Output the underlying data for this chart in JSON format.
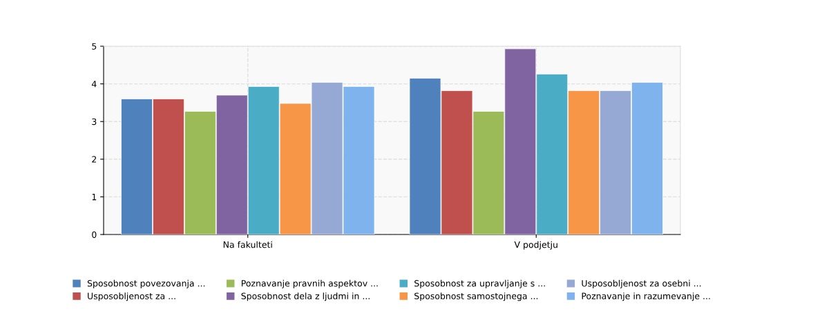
{
  "chart_data": {
    "type": "bar",
    "categories": [
      "Na fakulteti",
      "V podjetju"
    ],
    "series": [
      {
        "name": "Sposobnost povezovanja ...",
        "color": "#4f81bd",
        "values": [
          3.6,
          4.15
        ]
      },
      {
        "name": "Usposobljenost za ...",
        "color": "#c0504d",
        "values": [
          3.6,
          3.82
        ]
      },
      {
        "name": "Poznavanje pravnih aspektov ...",
        "color": "#9bbb59",
        "values": [
          3.27,
          3.27
        ]
      },
      {
        "name": "Sposobnost dela z ljudmi in ...",
        "color": "#8064a2",
        "values": [
          3.7,
          4.93
        ]
      },
      {
        "name": "Sposobnost za upravljanje s ...",
        "color": "#4bacc6",
        "values": [
          3.93,
          4.26
        ]
      },
      {
        "name": "Sposobnost samostojnega ...",
        "color": "#f79646",
        "values": [
          3.48,
          3.82
        ]
      },
      {
        "name": "Usposobljenost za osebni ...",
        "color": "#95a9d4",
        "values": [
          4.04,
          3.82
        ]
      },
      {
        "name": "Poznavanje in razumevanje ...",
        "color": "#7eb3ed",
        "values": [
          3.93,
          4.04
        ]
      }
    ],
    "ylim": [
      0,
      5
    ],
    "yticks": [
      0,
      1,
      2,
      3,
      4,
      5
    ],
    "grid": true,
    "legend": "bottom"
  }
}
